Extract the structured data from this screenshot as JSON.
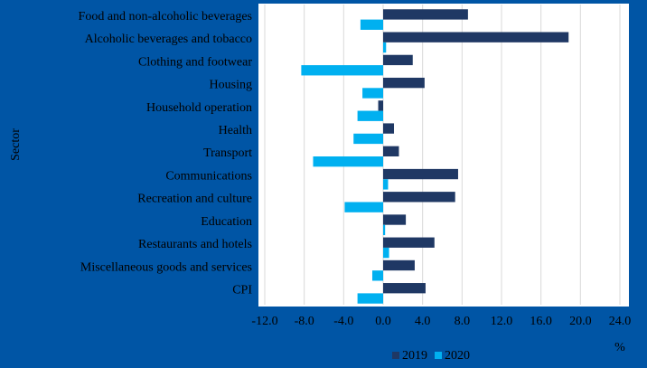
{
  "chart_data": {
    "type": "hbar",
    "categories": [
      "Food and non-alcoholic beverages",
      "Alcoholic beverages and tobacco",
      "Clothing and footwear",
      "Housing",
      "Household operation",
      "Health",
      "Transport",
      "Communications",
      "Recreation and culture",
      "Education",
      "Restaurants and hotels",
      "Miscellaneous goods and services",
      "CPI"
    ],
    "series": [
      {
        "name": "2019",
        "color": "#1f3864",
        "values": [
          8.6,
          18.8,
          3.0,
          4.2,
          -0.5,
          1.1,
          1.6,
          7.6,
          7.3,
          2.3,
          5.2,
          3.2,
          4.3
        ]
      },
      {
        "name": "2020",
        "color": "#00b0f0",
        "values": [
          -2.3,
          0.3,
          -8.3,
          -2.1,
          -2.6,
          -3.0,
          -7.1,
          0.5,
          -3.9,
          0.2,
          0.6,
          -1.1,
          -2.6
        ]
      }
    ],
    "xlim": [
      -12,
      24
    ],
    "xticks": [
      {
        "value": -12,
        "label": "-12.0"
      },
      {
        "value": -8,
        "label": "-8.0"
      },
      {
        "value": -4,
        "label": "-4.0"
      },
      {
        "value": 0,
        "label": "0.0"
      },
      {
        "value": 4,
        "label": "4.0"
      },
      {
        "value": 8,
        "label": "8.0"
      },
      {
        "value": 12,
        "label": "12.0"
      },
      {
        "value": 16,
        "label": "16.0"
      },
      {
        "value": 20,
        "label": "20.0"
      },
      {
        "value": 24,
        "label": "24.0"
      }
    ],
    "ylabel": "Sector",
    "xlabel": "%",
    "grid": true,
    "legend": "bottom"
  }
}
